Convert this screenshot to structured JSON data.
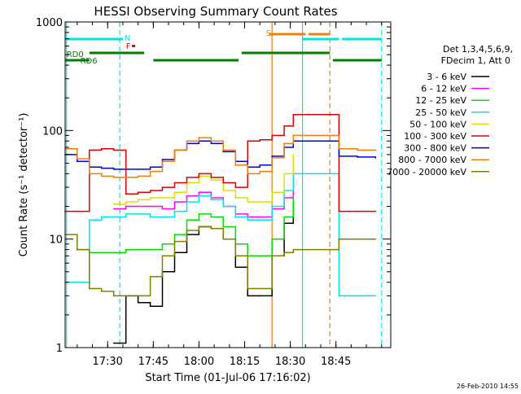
{
  "chart_data": {
    "type": "line",
    "title": "HESSI Observing Summary Count Rates",
    "xlabel": "Start Time (01-Jul-06 17:16:02)",
    "ylabel": "Count Rate (s⁻¹ detector⁻¹)",
    "yscale": "log",
    "xlim": [
      "17:16:02",
      "19:03:00"
    ],
    "ylim": [
      1,
      1000
    ],
    "x_ticks": [
      "17:30",
      "17:45",
      "18:00",
      "18:15",
      "18:30",
      "18:45"
    ],
    "y_ticks": [
      "1",
      "10",
      "100",
      "1000"
    ],
    "grid": false,
    "legend_position": "right",
    "legend_header": [
      "Det 1,3,4,5,6,9,",
      "FDecim 1, Att 0"
    ],
    "footer": "26-Feb-2010 14:55",
    "annotations": [
      "N",
      "F",
      "S",
      "RD0",
      "RD6"
    ],
    "flag_bars": [
      {
        "label": "N",
        "color": "#00e5e5",
        "segments": [
          [
            "17:16:02",
            "17:35"
          ],
          [
            "18:34",
            "18:46"
          ],
          [
            "18:47",
            "19:00"
          ]
        ]
      },
      {
        "label": "S",
        "color": "#ee7f10",
        "segments": [
          [
            "18:23",
            "18:35"
          ],
          [
            "18:36",
            "18:43"
          ]
        ]
      },
      {
        "label": "RD0",
        "color": "#007f00",
        "segments": [
          [
            "17:24",
            "17:42"
          ],
          [
            "18:14",
            "18:43"
          ]
        ]
      },
      {
        "label": "RD6",
        "color": "#007f00",
        "segments": [
          [
            "17:16:02",
            "17:24"
          ],
          [
            "17:45",
            "18:13"
          ],
          [
            "18:44",
            "19:00"
          ]
        ]
      }
    ],
    "vertical_markers": [
      {
        "time": "17:16:30",
        "color": "#00e5e5",
        "style": "solid"
      },
      {
        "time": "17:34",
        "color": "#00e5e5",
        "style": "dashed"
      },
      {
        "time": "18:24",
        "color": "#ee7f10",
        "style": "solid"
      },
      {
        "time": "18:34",
        "color": "#00e5e5",
        "style": "solid"
      },
      {
        "time": "18:43",
        "color": "#ee7f10",
        "style": "dashed"
      },
      {
        "time": "19:00",
        "color": "#00e5e5",
        "style": "dashed"
      }
    ],
    "data_gap": [
      "18:31",
      "18:46"
    ],
    "x": [
      "17:16",
      "17:20",
      "17:24",
      "17:28",
      "17:32",
      "17:36",
      "17:40",
      "17:44",
      "17:48",
      "17:52",
      "17:56",
      "18:00",
      "18:04",
      "18:08",
      "18:12",
      "18:16",
      "18:20",
      "18:24",
      "18:28",
      "18:31",
      "18:46",
      "18:52",
      "18:58"
    ],
    "series": [
      {
        "name": "3 - 6 keV",
        "color": "#000000",
        "values": [
          null,
          null,
          null,
          null,
          1.1,
          3.0,
          2.6,
          2.4,
          5.0,
          7.5,
          11,
          13,
          12.5,
          10,
          5.5,
          3.0,
          3.0,
          7.0,
          14,
          22,
          null,
          null,
          null
        ]
      },
      {
        "name": "6 - 12 keV",
        "color": "#ff00ff",
        "values": [
          null,
          null,
          null,
          null,
          19,
          20,
          20,
          20,
          19,
          22,
          25,
          27,
          24,
          20,
          17,
          16,
          16,
          19,
          24,
          28,
          null,
          null,
          null
        ]
      },
      {
        "name": "12 - 25 keV",
        "color": "#00dd00",
        "values": [
          null,
          8.0,
          7.5,
          7.5,
          7.5,
          8.0,
          8.0,
          8.0,
          9.0,
          11,
          15,
          17,
          16,
          13,
          9.0,
          7.0,
          7.0,
          10,
          16,
          24,
          null,
          null,
          null
        ]
      },
      {
        "name": "25 - 50 keV",
        "color": "#00e5e5",
        "values": [
          4.0,
          4.0,
          15,
          16,
          16,
          17,
          17,
          16,
          16,
          18,
          22,
          25,
          23,
          20,
          16,
          15,
          15,
          20,
          28,
          40,
          3.0,
          3.0,
          3.0
        ]
      },
      {
        "name": "50 - 100 keV",
        "color": "#dddd00",
        "values": [
          null,
          null,
          null,
          null,
          21,
          22,
          23,
          24,
          24,
          27,
          33,
          38,
          35,
          28,
          24,
          22,
          22,
          27,
          40,
          60,
          null,
          null,
          null
        ]
      },
      {
        "name": "100 - 300 keV",
        "color": "#dd0000",
        "values": [
          18,
          18,
          66,
          68,
          66,
          26,
          27,
          28,
          30,
          33,
          37,
          40,
          37,
          33,
          30,
          80,
          82,
          90,
          110,
          140,
          18,
          18,
          18
        ]
      },
      {
        "name": "300 - 800 keV",
        "color": "#0000dd",
        "values": [
          60,
          52,
          46,
          45,
          44,
          44,
          44,
          46,
          54,
          66,
          76,
          80,
          76,
          64,
          52,
          46,
          48,
          58,
          70,
          80,
          58,
          57,
          56
        ]
      },
      {
        "name": "800 - 7000 keV",
        "color": "#ee7f10",
        "values": [
          68,
          55,
          40,
          38,
          37,
          37,
          38,
          42,
          52,
          66,
          80,
          86,
          80,
          66,
          48,
          40,
          42,
          56,
          76,
          90,
          68,
          66,
          66
        ]
      },
      {
        "name": "7000 - 20000 keV",
        "color": "#808000",
        "values": [
          11,
          8.0,
          3.5,
          3.3,
          3.0,
          3.0,
          3.0,
          4.5,
          7.0,
          9.5,
          12,
          13,
          12.5,
          10,
          7.0,
          3.5,
          3.5,
          7.0,
          7.5,
          8.0,
          10,
          10,
          10
        ]
      }
    ]
  }
}
